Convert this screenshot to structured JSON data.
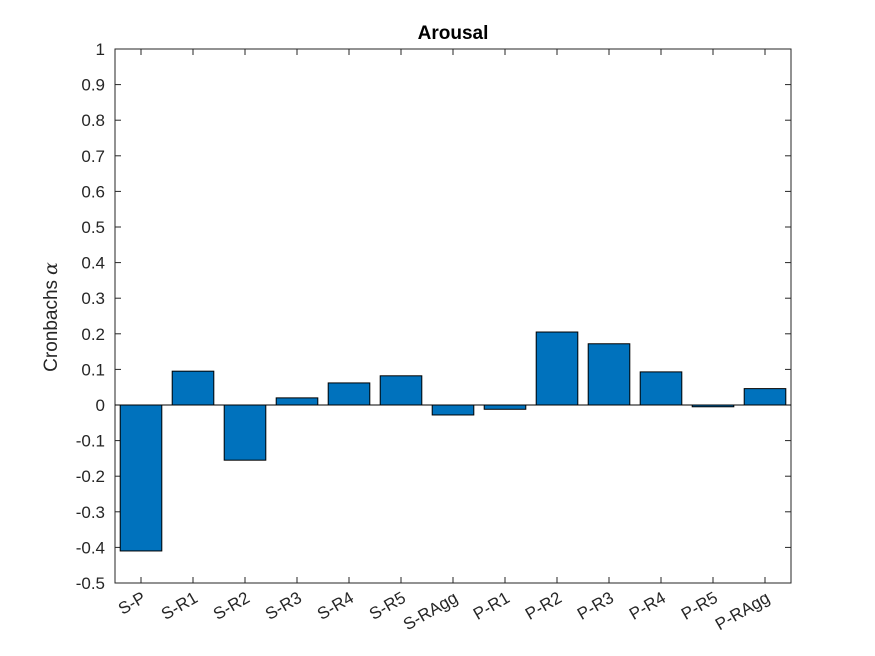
{
  "chart_data": {
    "type": "bar",
    "title": "Arousal",
    "xlabel": "",
    "ylabel": "Cronbachs",
    "ylabel_symbol": "α",
    "categories": [
      "S-P",
      "S-R1",
      "S-R2",
      "S-R3",
      "S-R4",
      "S-R5",
      "S-RAgg",
      "P-R1",
      "P-R2",
      "P-R3",
      "P-R4",
      "P-R5",
      "P-RAgg"
    ],
    "values": [
      -0.41,
      0.095,
      -0.155,
      0.02,
      0.062,
      0.082,
      -0.028,
      -0.012,
      0.205,
      0.172,
      0.093,
      -0.005,
      0.046
    ],
    "ylim": [
      -0.5,
      1
    ],
    "yticks": [
      -0.5,
      -0.4,
      -0.3,
      -0.2,
      -0.1,
      0,
      0.1,
      0.2,
      0.3,
      0.4,
      0.5,
      0.6,
      0.7,
      0.8,
      0.9,
      1
    ],
    "ytick_labels": [
      "-0.5",
      "-0.4",
      "-0.3",
      "-0.2",
      "-0.1",
      "0",
      "0.1",
      "0.2",
      "0.3",
      "0.4",
      "0.5",
      "0.6",
      "0.7",
      "0.8",
      "0.9",
      "1"
    ],
    "grid": false,
    "colors": {
      "bar_fill": "#0072BD",
      "bar_edge": "#000000",
      "axis": "#262626"
    }
  }
}
